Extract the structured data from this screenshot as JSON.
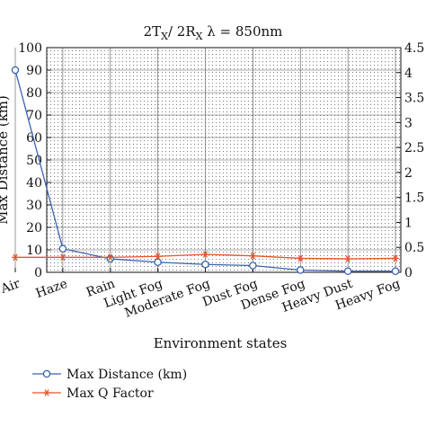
{
  "chart_data": {
    "type": "line",
    "title": "2TX / 2RX λ = 850nm",
    "title_parts": {
      "a": "2T",
      "a_sub": "X",
      "b": "/ 2R",
      "b_sub": "X",
      "c": " λ = 850nm"
    },
    "xlabel": "Environment states",
    "ylabel_left": "Max Distance (km)",
    "categories": [
      "Clear Air",
      "Haze",
      "Rain",
      "Light Fog",
      "Moderate Fog",
      "Dust Fog",
      "Dense Fog",
      "Heavy Dust",
      "Heavy Fog"
    ],
    "ylim_left": [
      0,
      100
    ],
    "yticks_left": [
      0,
      10,
      20,
      30,
      40,
      50,
      60,
      70,
      80,
      90,
      100
    ],
    "ylim_right": [
      0,
      4.5
    ],
    "yticks_right": [
      "0",
      "0.5",
      "1",
      "1.5",
      "2",
      "2.5",
      "3",
      "3.5",
      "4",
      "4.5"
    ],
    "grid": true,
    "series": [
      {
        "name": "Max Distance (km)",
        "axis": "left",
        "color": "#3a62b0",
        "marker": "circle",
        "values": [
          90,
          10.5,
          6,
          4.5,
          3.5,
          3,
          1,
          0.5,
          0.5
        ]
      },
      {
        "name": "Max Q Factor",
        "axis": "right",
        "color": "#e8542a",
        "marker": "star",
        "values": [
          0.3,
          0.3,
          0.3,
          0.32,
          0.36,
          0.33,
          0.28,
          0.27,
          0.28
        ]
      }
    ],
    "legend_position": "bottom-left"
  }
}
